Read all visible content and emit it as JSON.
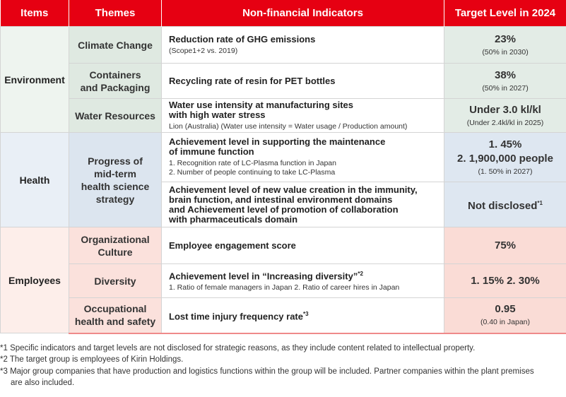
{
  "table": {
    "header": [
      "Items",
      "Themes",
      "Non-financial Indicators",
      "Target Level in 2024"
    ],
    "sections": [
      {
        "item": "Environment",
        "themes": [
          {
            "name_lines": [
              "Climate Change"
            ],
            "indicators": [
              {
                "title_lines": [
                  "Reduction rate of GHG emissions"
                ],
                "notes": [
                  "(Scope1+2 vs. 2019)"
                ],
                "target_lines": [
                  "23%"
                ],
                "target_note": "(50% in 2030)"
              }
            ]
          },
          {
            "name_lines": [
              "Containers",
              "and Packaging"
            ],
            "indicators": [
              {
                "title_lines": [
                  "Recycling rate of resin for PET bottles"
                ],
                "target_lines": [
                  "38%"
                ],
                "target_note": "(50% in 2027)"
              }
            ]
          },
          {
            "name_lines": [
              "Water Resources"
            ],
            "indicators": [
              {
                "title_lines": [
                  "Water use intensity at manufacturing sites",
                  "with high water stress"
                ],
                "notes": [
                  "Lion (Australia)  (Water use intensity = Water usage / Production amount)"
                ],
                "target_lines": [
                  "Under 3.0 kl/kl"
                ],
                "target_note": "(Under 2.4kl/kl in 2025)"
              }
            ]
          }
        ]
      },
      {
        "item": "Health",
        "themes": [
          {
            "name_lines": [
              "Progress of",
              "mid-term",
              "health science",
              "strategy"
            ],
            "indicators": [
              {
                "title_lines": [
                  "Achievement level in supporting the maintenance",
                  "of immune function"
                ],
                "notes": [
                  "1. Recognition rate of LC-Plasma function in Japan",
                  "2. Number of people continuing to take LC-Plasma"
                ],
                "target_lines": [
                  "1. 45%",
                  "2. 1,900,000 people"
                ],
                "target_note": "(1. 50% in 2027)"
              },
              {
                "title_lines": [
                  "Achievement level of new value creation in the immunity,",
                  "brain function, and intestinal environment domains",
                  "and Achievement level of promotion of collaboration",
                  "with pharmaceuticals domain"
                ],
                "target_lines": [
                  "Not disclosed"
                ],
                "target_sup": "*1"
              }
            ]
          }
        ]
      },
      {
        "item": "Employees",
        "themes": [
          {
            "name_lines": [
              "Organizational",
              "Culture"
            ],
            "indicators": [
              {
                "title_lines": [
                  "Employee engagement score"
                ],
                "target_lines": [
                  "75%"
                ]
              }
            ]
          },
          {
            "name_lines": [
              "Diversity"
            ],
            "indicators": [
              {
                "title_lines": [
                  "Achievement level in “Increasing diversity”"
                ],
                "title_sup": "*2",
                "notes": [
                  "1. Ratio of female managers in Japan  2. Ratio of career hires in Japan"
                ],
                "target_lines": [
                  "1. 15%   2. 30%"
                ]
              }
            ]
          },
          {
            "name_lines": [
              "Occupational",
              "health and safety"
            ],
            "indicators": [
              {
                "title_lines": [
                  "Lost time injury frequency rate"
                ],
                "title_sup": "*3",
                "target_lines": [
                  "0.95"
                ],
                "target_note": "(0.40 in Japan)"
              }
            ]
          }
        ]
      }
    ]
  },
  "footnotes": [
    "*1 Specific indicators and target levels are not disclosed for strategic reasons, as they include content related to intellectual property.",
    "*2 The target group is employees of Kirin Holdings.",
    "*3 Major group companies that have production and logistics functions within the group will be included. Partner companies within the plant premises are also included."
  ]
}
